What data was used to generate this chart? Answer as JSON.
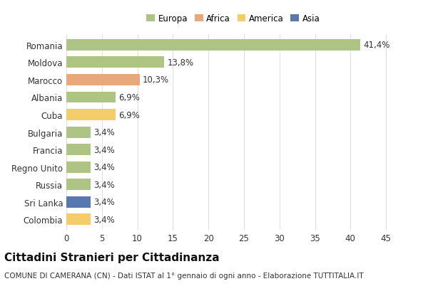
{
  "categories": [
    "Romania",
    "Moldova",
    "Marocco",
    "Albania",
    "Cuba",
    "Bulgaria",
    "Francia",
    "Regno Unito",
    "Russia",
    "Sri Lanka",
    "Colombia"
  ],
  "values": [
    41.4,
    13.8,
    10.3,
    6.9,
    6.9,
    3.4,
    3.4,
    3.4,
    3.4,
    3.4,
    3.4
  ],
  "labels": [
    "41,4%",
    "13,8%",
    "10,3%",
    "6,9%",
    "6,9%",
    "3,4%",
    "3,4%",
    "3,4%",
    "3,4%",
    "3,4%",
    "3,4%"
  ],
  "colors": [
    "#aec484",
    "#aec484",
    "#e8a87c",
    "#aec484",
    "#f5cc6a",
    "#aec484",
    "#aec484",
    "#aec484",
    "#aec484",
    "#5878b0",
    "#f5cc6a"
  ],
  "legend_labels": [
    "Europa",
    "Africa",
    "America",
    "Asia"
  ],
  "legend_colors": [
    "#aec484",
    "#e8a87c",
    "#f5cc6a",
    "#5878b0"
  ],
  "title": "Cittadini Stranieri per Cittadinanza",
  "subtitle": "COMUNE DI CAMERANA (CN) - Dati ISTAT al 1° gennaio di ogni anno - Elaborazione TUTTITALIA.IT",
  "xlim": [
    0,
    47
  ],
  "xticks": [
    0,
    5,
    10,
    15,
    20,
    25,
    30,
    35,
    40,
    45
  ],
  "figure_bg": "#ffffff",
  "axes_bg": "#ffffff",
  "grid_color": "#e0e0e0",
  "bar_height": 0.65,
  "title_fontsize": 11,
  "subtitle_fontsize": 7.5,
  "tick_fontsize": 8.5,
  "label_fontsize": 8.5,
  "legend_fontsize": 8.5
}
